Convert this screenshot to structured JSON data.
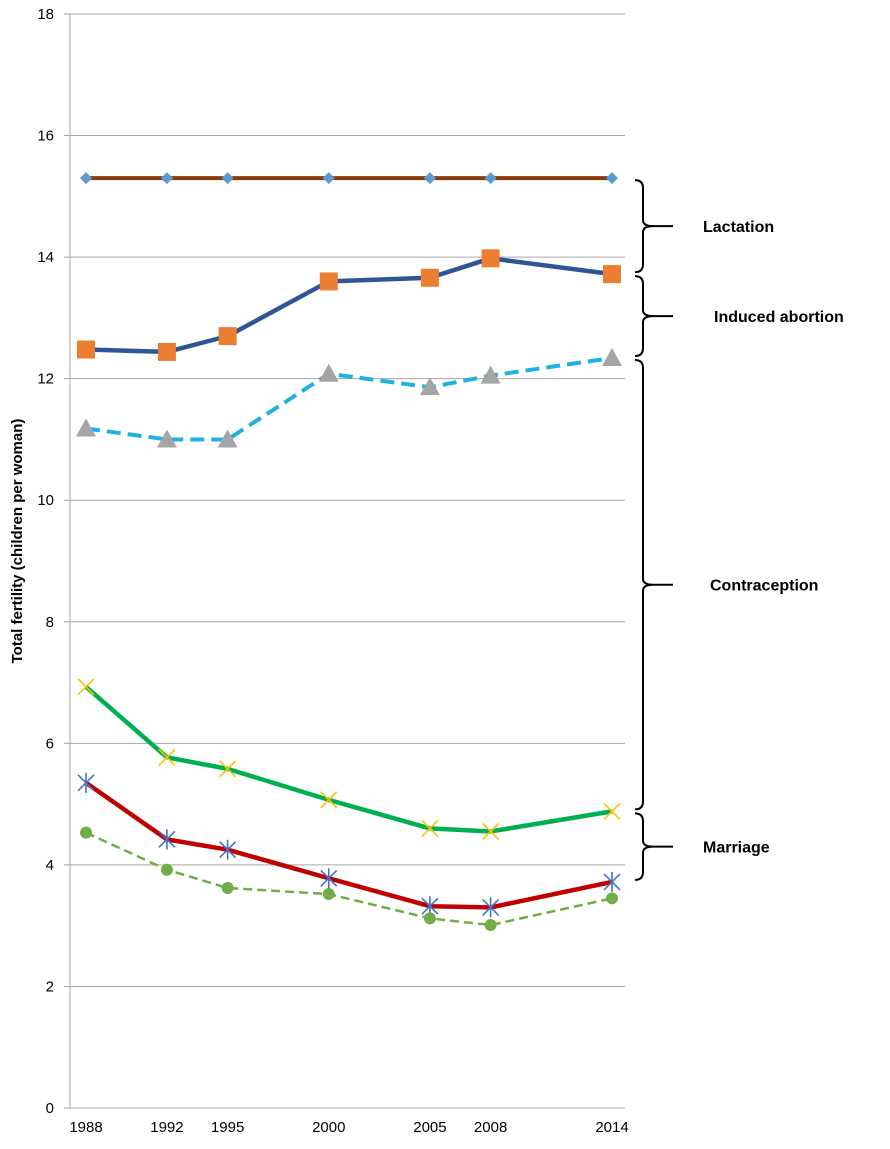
{
  "chart_data": {
    "type": "line",
    "title": "",
    "xlabel": "",
    "ylabel": "Total fertility (children per woman)",
    "x": [
      1988,
      1992,
      1995,
      2000,
      2005,
      2008,
      2014
    ],
    "ylim": [
      0,
      18
    ],
    "yticks": [
      0,
      2,
      4,
      6,
      8,
      10,
      12,
      14,
      16,
      18
    ],
    "grid": "horizontal",
    "legend": "none",
    "series": [
      {
        "values": [
          15.3,
          15.3,
          15.3,
          15.3,
          15.3,
          15.3,
          15.3
        ],
        "color": "#843C0C",
        "marker": "diamond",
        "marker_color": "#5B9BD5",
        "dash": "solid",
        "width": 4
      },
      {
        "values": [
          12.48,
          12.44,
          12.7,
          13.6,
          13.66,
          13.98,
          13.72
        ],
        "color": "#2F5597",
        "marker": "square",
        "marker_color": "#ED7D31",
        "dash": "solid",
        "width": 4.5
      },
      {
        "values": [
          11.18,
          11.0,
          11.0,
          12.08,
          11.86,
          12.05,
          12.34
        ],
        "color": "#1FB0E6",
        "marker": "triangle",
        "marker_color": "#A5A5A5",
        "dash": "dashed",
        "width": 4
      },
      {
        "values": [
          6.93,
          5.77,
          5.58,
          5.07,
          4.6,
          4.55,
          4.88
        ],
        "color": "#00B050",
        "marker": "x",
        "marker_color": "#FFC000",
        "dash": "solid",
        "width": 4.5
      },
      {
        "values": [
          5.35,
          4.42,
          4.25,
          3.78,
          3.32,
          3.3,
          3.72
        ],
        "color": "#C00000",
        "marker": "star",
        "marker_color": "#4472C4",
        "dash": "solid",
        "width": 4.5
      },
      {
        "values": [
          4.53,
          3.92,
          3.62,
          3.52,
          3.12,
          3.01,
          3.45
        ],
        "color": "#70AD47",
        "marker": "circle",
        "marker_color": "#70AD47",
        "dash": "dashed",
        "width": 2.5
      }
    ],
    "annotations": [
      {
        "label": "Lactation",
        "from": 13.72,
        "to": 15.3
      },
      {
        "label": "Induced abortion",
        "from": 12.34,
        "to": 13.72
      },
      {
        "label": "Contraception",
        "from": 4.88,
        "to": 12.34
      },
      {
        "label": "Marriage",
        "from": 3.72,
        "to": 4.88
      }
    ]
  }
}
